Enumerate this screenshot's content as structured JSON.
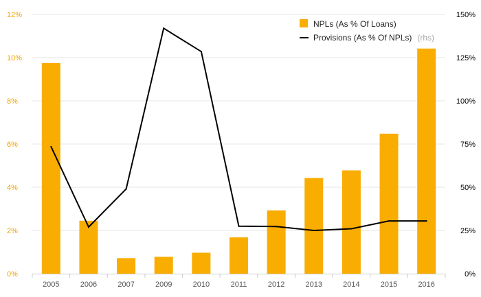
{
  "chart_data": {
    "type": "bar",
    "categories": [
      "2005",
      "2006",
      "2007",
      "2009",
      "2010",
      "2011",
      "2012",
      "2013",
      "2014",
      "2015",
      "2016"
    ],
    "series": [
      {
        "name": "NPLs (As % Of Loans)",
        "type": "bar",
        "axis": "left",
        "color": "#f9ad00",
        "values": [
          9.75,
          2.45,
          0.72,
          0.78,
          0.97,
          1.68,
          2.93,
          4.43,
          4.78,
          6.48,
          10.42
        ]
      },
      {
        "name": "Provisions (As % Of NPLs)",
        "type": "line",
        "axis": "right",
        "color": "#000000",
        "values": [
          73.5,
          27,
          49,
          142,
          128.5,
          27.5,
          27.3,
          25,
          26,
          30.5,
          30.5
        ]
      }
    ],
    "y_left": {
      "ylim": [
        0,
        12
      ],
      "ticks": [
        "0%",
        "2%",
        "4%",
        "6%",
        "8%",
        "10%",
        "12%"
      ]
    },
    "y_right": {
      "ylim": [
        0,
        150
      ],
      "ticks": [
        "0%",
        "25%",
        "50%",
        "75%",
        "100%",
        "125%",
        "150%"
      ]
    },
    "legend": {
      "placement": "top-right",
      "items": [
        {
          "label": "NPLs (As % Of Loans)",
          "suffix": ""
        },
        {
          "label": "Provisions (As % Of NPLs)",
          "suffix": "(rhs)"
        }
      ]
    },
    "grid": true,
    "colors": {
      "bar": "#f9ad00",
      "line": "#000000",
      "left_tick": "#f0a500",
      "grid": "#e6e6e6"
    }
  }
}
